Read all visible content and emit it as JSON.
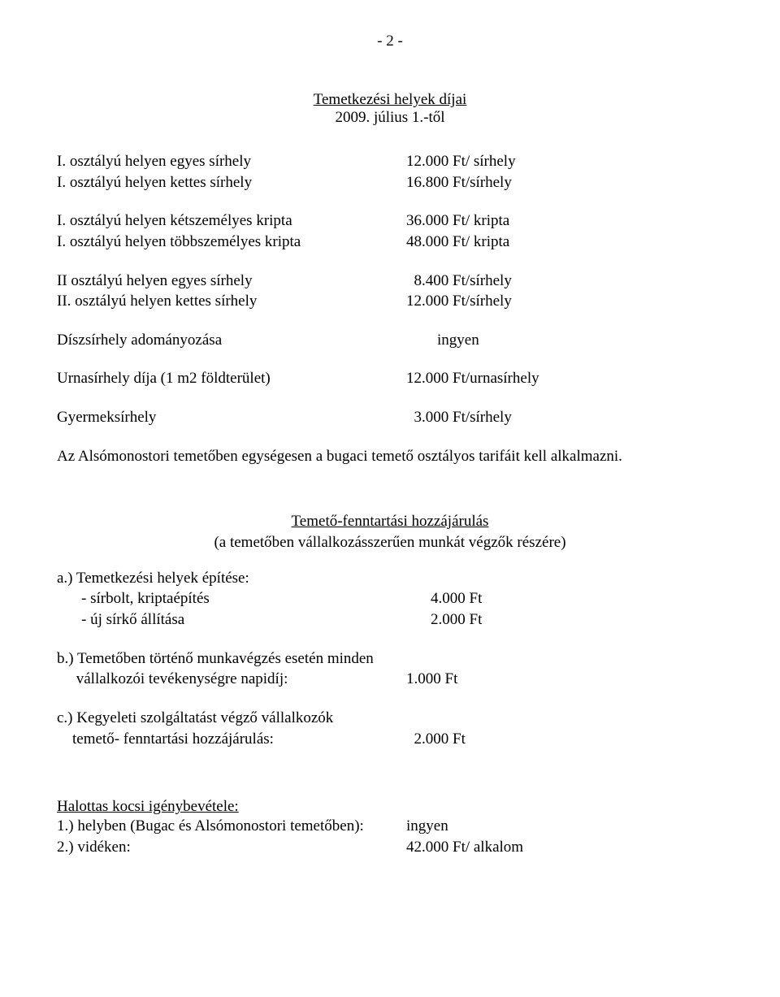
{
  "pageNumber": "- 2 -",
  "title": "Temetkezési helyek díjai",
  "subtitle": "2009. július 1.-től",
  "rows1": [
    {
      "label": "I. osztályú helyen egyes sírhely",
      "value": "12.000 Ft/ sírhely"
    },
    {
      "label": "I. osztályú helyen kettes sírhely",
      "value": "16.800 Ft/sírhely"
    }
  ],
  "rows2": [
    {
      "label": "I. osztályú helyen kétszemélyes kripta",
      "value": "36.000 Ft/ kripta"
    },
    {
      "label": "I. osztályú helyen többszemélyes kripta",
      "value": "48.000 Ft/ kripta"
    }
  ],
  "rows3": [
    {
      "label": "II osztályú helyen egyes sírhely",
      "value": "  8.400 Ft/sírhely"
    },
    {
      "label": "II. osztályú helyen kettes sírhely",
      "value": "12.000 Ft/sírhely"
    }
  ],
  "rows4": [
    {
      "label": "Díszsírhely adományozása",
      "value": "        ingyen"
    }
  ],
  "rows5": [
    {
      "label": "Urnasírhely díja (1 m2 földterület)",
      "value": "12.000 Ft/urnasírhely"
    }
  ],
  "rows6": [
    {
      "label": "Gyermeksírhely",
      "value": "  3.000 Ft/sírhely"
    }
  ],
  "note1": "Az Alsómonostori temetőben egységesen a bugaci temető osztályos tarifáit kell alkalmazni.",
  "section2Title": "Temető-fenntartási hozzájárulás",
  "section2Sub": "(a temetőben vállalkozásszerűen munkát végzők részére)",
  "a": {
    "heading": "a.) Temetkezési helyek építése:",
    "items": [
      {
        "label": "- sírbolt, kriptaépítés",
        "value": "4.000 Ft"
      },
      {
        "label": "- új sírkő állítása",
        "value": "2.000 Ft"
      }
    ]
  },
  "b": {
    "line1": "b.) Temetőben történő munkavégzés esetén minden",
    "line2label": "     vállalkozói tevékenységre napidíj:",
    "line2value": "1.000 Ft"
  },
  "c": {
    "line1": "c.) Kegyeleti szolgáltatást végző vállalkozók",
    "line2label": "    temető- fenntartási hozzájárulás:",
    "line2value": "  2.000 Ft"
  },
  "section3Title": "Halottas kocsi igénybevétele:",
  "section3Rows": [
    {
      "label": "1.) helyben (Bugac és Alsómonostori temetőben):",
      "value": "ingyen"
    },
    {
      "label": "2.) vidéken:",
      "value": "42.000 Ft/ alkalom"
    }
  ]
}
